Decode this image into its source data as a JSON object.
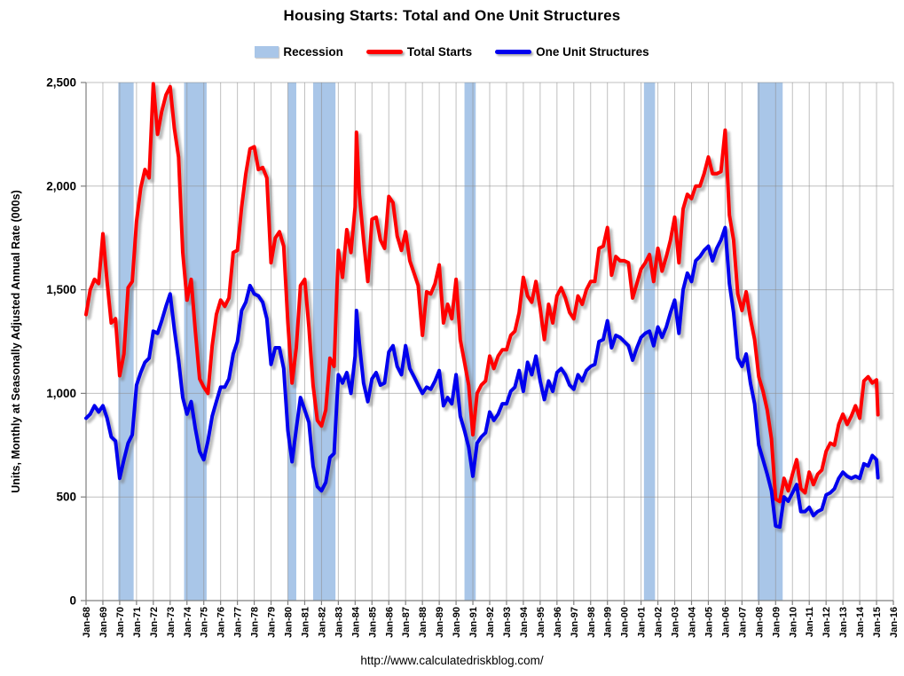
{
  "title": "Housing Starts: Total and One Unit Structures",
  "source_url": "http://www.calculatedriskblog.com/",
  "legend": [
    {
      "label": "Recession",
      "type": "band",
      "color": "#A9C6E8"
    },
    {
      "label": "Total Starts",
      "type": "line",
      "color": "#FF0000"
    },
    {
      "label": "One Unit Structures",
      "type": "line",
      "color": "#0000EE"
    }
  ],
  "colors": {
    "recession_band": "#A9C6E8",
    "total_starts": "#FF0000",
    "one_unit": "#0000EE",
    "gridline": "#8C8C8C",
    "axis": "#7F7F7F",
    "text": "#000000"
  },
  "chart_data": {
    "type": "line",
    "title": "Housing Starts: Total and One Unit Structures",
    "xlabel": "",
    "ylabel": "Units, Monthly at Seasonally Adjusted Annual Rate (000s)",
    "xlim": [
      1968,
      2016
    ],
    "ylim": [
      0,
      2500
    ],
    "grid": true,
    "legend_position": "top",
    "y_ticks": [
      0,
      500,
      1000,
      1500,
      2000,
      2500
    ],
    "y_tick_labels": [
      "0",
      "500",
      "1,000",
      "1,500",
      "2,000",
      "2,500"
    ],
    "x_ticks_years": [
      1968,
      1969,
      1970,
      1971,
      1972,
      1973,
      1974,
      1975,
      1976,
      1977,
      1978,
      1979,
      1980,
      1981,
      1982,
      1983,
      1984,
      1985,
      1986,
      1987,
      1988,
      1989,
      1990,
      1991,
      1992,
      1993,
      1994,
      1995,
      1996,
      1997,
      1998,
      1999,
      2000,
      2001,
      2002,
      2003,
      2004,
      2005,
      2006,
      2007,
      2008,
      2009,
      2010,
      2011,
      2012,
      2013,
      2014,
      2015,
      2016
    ],
    "x_tick_labels": [
      "Jan-68",
      "Jan-69",
      "Jan-70",
      "Jan-71",
      "Jan-72",
      "Jan-73",
      "Jan-74",
      "Jan-75",
      "Jan-76",
      "Jan-77",
      "Jan-78",
      "Jan-79",
      "Jan-80",
      "Jan-81",
      "Jan-82",
      "Jan-83",
      "Jan-84",
      "Jan-85",
      "Jan-86",
      "Jan-87",
      "Jan-88",
      "Jan-89",
      "Jan-90",
      "Jan-91",
      "Jan-92",
      "Jan-93",
      "Jan-94",
      "Jan-95",
      "Jan-96",
      "Jan-97",
      "Jan-98",
      "Jan-99",
      "Jan-00",
      "Jan-01",
      "Jan-02",
      "Jan-03",
      "Jan-04",
      "Jan-05",
      "Jan-06",
      "Jan-07",
      "Jan-08",
      "Jan-09",
      "Jan-10",
      "Jan-11",
      "Jan-12",
      "Jan-13",
      "Jan-14",
      "Jan-15",
      "Jan-16"
    ],
    "recessions": [
      [
        1969.92,
        1970.83
      ],
      [
        1973.83,
        1975.17
      ],
      [
        1980.0,
        1980.5
      ],
      [
        1981.5,
        1982.83
      ],
      [
        1990.5,
        1991.17
      ],
      [
        2001.17,
        2001.83
      ],
      [
        2007.92,
        2009.42
      ]
    ],
    "x": [
      1968,
      1968.25,
      1968.5,
      1968.75,
      1969,
      1969.25,
      1969.5,
      1969.75,
      1970,
      1970.25,
      1970.5,
      1970.75,
      1971,
      1971.25,
      1971.5,
      1971.75,
      1972,
      1972.25,
      1972.5,
      1972.75,
      1973,
      1973.25,
      1973.5,
      1973.75,
      1974,
      1974.25,
      1974.5,
      1974.75,
      1975,
      1975.25,
      1975.5,
      1975.75,
      1976,
      1976.25,
      1976.5,
      1976.75,
      1977,
      1977.25,
      1977.5,
      1977.75,
      1978,
      1978.25,
      1978.5,
      1978.75,
      1979,
      1979.25,
      1979.5,
      1979.75,
      1980,
      1980.25,
      1980.5,
      1980.75,
      1981,
      1981.25,
      1981.5,
      1981.75,
      1982,
      1982.25,
      1982.5,
      1982.75,
      1983,
      1983.25,
      1983.5,
      1983.75,
      1984,
      1984.08,
      1984.25,
      1984.5,
      1984.75,
      1985,
      1985.25,
      1985.5,
      1985.75,
      1986,
      1986.25,
      1986.5,
      1986.75,
      1987,
      1987.25,
      1987.5,
      1987.75,
      1988,
      1988.25,
      1988.5,
      1988.75,
      1989,
      1989.25,
      1989.5,
      1989.75,
      1990,
      1990.25,
      1990.5,
      1990.75,
      1991,
      1991.25,
      1991.5,
      1991.75,
      1992,
      1992.25,
      1992.5,
      1992.75,
      1993,
      1993.25,
      1993.5,
      1993.75,
      1994,
      1994.25,
      1994.5,
      1994.75,
      1995,
      1995.25,
      1995.5,
      1995.75,
      1996,
      1996.25,
      1996.5,
      1996.75,
      1997,
      1997.25,
      1997.5,
      1997.75,
      1998,
      1998.25,
      1998.5,
      1998.75,
      1999,
      1999.25,
      1999.5,
      1999.75,
      2000,
      2000.25,
      2000.5,
      2000.75,
      2001,
      2001.25,
      2001.5,
      2001.75,
      2002,
      2002.25,
      2002.5,
      2002.75,
      2003,
      2003.25,
      2003.5,
      2003.75,
      2004,
      2004.25,
      2004.5,
      2004.75,
      2005,
      2005.25,
      2005.5,
      2005.75,
      2006,
      2006.25,
      2006.5,
      2006.75,
      2007,
      2007.25,
      2007.5,
      2007.75,
      2008,
      2008.25,
      2008.5,
      2008.75,
      2009,
      2009.25,
      2009.5,
      2009.75,
      2010,
      2010.25,
      2010.5,
      2010.75,
      2011,
      2011.25,
      2011.5,
      2011.75,
      2012,
      2012.25,
      2012.5,
      2012.75,
      2013,
      2013.25,
      2013.5,
      2013.75,
      2014,
      2014.25,
      2014.5,
      2014.75,
      2015,
      2015.08
    ],
    "series": [
      {
        "name": "Total Starts",
        "color": "#FF0000",
        "values": [
          1380,
          1500,
          1550,
          1530,
          1770,
          1540,
          1340,
          1360,
          1085,
          1190,
          1510,
          1540,
          1830,
          1990,
          2080,
          2040,
          2494,
          2250,
          2360,
          2440,
          2480,
          2280,
          2140,
          1680,
          1450,
          1550,
          1300,
          1070,
          1030,
          1000,
          1230,
          1380,
          1450,
          1420,
          1460,
          1680,
          1690,
          1900,
          2060,
          2180,
          2190,
          2080,
          2090,
          2040,
          1630,
          1750,
          1780,
          1710,
          1341,
          1050,
          1220,
          1520,
          1550,
          1320,
          1040,
          870,
          843,
          920,
          1170,
          1130,
          1690,
          1560,
          1790,
          1680,
          1900,
          2260,
          1960,
          1740,
          1540,
          1840,
          1850,
          1740,
          1700,
          1950,
          1920,
          1760,
          1690,
          1780,
          1640,
          1580,
          1520,
          1280,
          1490,
          1480,
          1530,
          1620,
          1340,
          1430,
          1360,
          1550,
          1260,
          1150,
          1040,
          800,
          1000,
          1040,
          1060,
          1180,
          1120,
          1180,
          1210,
          1210,
          1280,
          1300,
          1390,
          1560,
          1470,
          1440,
          1540,
          1410,
          1260,
          1430,
          1340,
          1470,
          1510,
          1460,
          1390,
          1360,
          1470,
          1430,
          1500,
          1540,
          1540,
          1700,
          1710,
          1800,
          1570,
          1660,
          1640,
          1640,
          1630,
          1460,
          1530,
          1600,
          1630,
          1670,
          1540,
          1700,
          1590,
          1660,
          1740,
          1850,
          1630,
          1890,
          1960,
          1940,
          2000,
          2000,
          2060,
          2140,
          2060,
          2060,
          2070,
          2270,
          1860,
          1740,
          1480,
          1400,
          1490,
          1360,
          1260,
          1080,
          1010,
          920,
          780,
          490,
          478,
          590,
          530,
          610,
          680,
          540,
          520,
          620,
          560,
          610,
          630,
          720,
          760,
          750,
          850,
          900,
          850,
          890,
          940,
          880,
          1060,
          1080,
          1050,
          1065,
          897
        ]
      },
      {
        "name": "One Unit Structures",
        "color": "#0000EE",
        "values": [
          880,
          900,
          940,
          910,
          940,
          880,
          790,
          770,
          590,
          680,
          760,
          800,
          1040,
          1100,
          1150,
          1170,
          1300,
          1290,
          1350,
          1420,
          1480,
          1310,
          1160,
          980,
          900,
          960,
          830,
          720,
          680,
          770,
          890,
          960,
          1030,
          1030,
          1070,
          1190,
          1250,
          1400,
          1440,
          1520,
          1480,
          1470,
          1440,
          1360,
          1140,
          1220,
          1220,
          1120,
          820,
          670,
          830,
          980,
          920,
          860,
          650,
          550,
          530,
          570,
          690,
          710,
          1090,
          1050,
          1100,
          1000,
          1180,
          1400,
          1240,
          1050,
          960,
          1070,
          1100,
          1040,
          1050,
          1200,
          1230,
          1130,
          1090,
          1230,
          1120,
          1080,
          1040,
          1000,
          1030,
          1020,
          1060,
          1110,
          940,
          980,
          950,
          1090,
          890,
          820,
          740,
          600,
          760,
          790,
          810,
          910,
          870,
          900,
          950,
          950,
          1010,
          1030,
          1110,
          1010,
          1150,
          1090,
          1180,
          1060,
          970,
          1060,
          1010,
          1100,
          1120,
          1090,
          1040,
          1020,
          1090,
          1060,
          1110,
          1130,
          1140,
          1250,
          1260,
          1350,
          1220,
          1280,
          1270,
          1250,
          1230,
          1160,
          1220,
          1270,
          1290,
          1300,
          1230,
          1320,
          1270,
          1320,
          1390,
          1450,
          1290,
          1500,
          1580,
          1540,
          1640,
          1660,
          1690,
          1710,
          1640,
          1700,
          1740,
          1800,
          1530,
          1390,
          1170,
          1130,
          1190,
          1050,
          950,
          750,
          680,
          610,
          530,
          360,
          355,
          500,
          480,
          520,
          560,
          430,
          430,
          450,
          410,
          430,
          440,
          510,
          520,
          540,
          590,
          620,
          600,
          590,
          600,
          590,
          660,
          650,
          700,
          680,
          593
        ]
      }
    ]
  }
}
